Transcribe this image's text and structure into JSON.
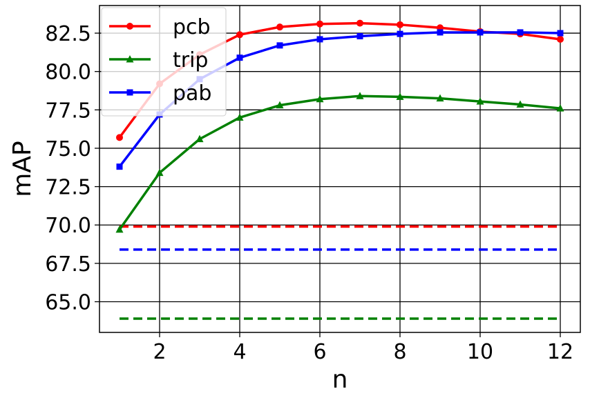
{
  "chart_data": {
    "type": "line",
    "title": "",
    "xlabel": "n",
    "ylabel": "mAP",
    "xlim": [
      0.5,
      12.5
    ],
    "ylim": [
      63.0,
      84.3
    ],
    "xticks": [
      2,
      4,
      6,
      8,
      10,
      12
    ],
    "xtick_labels": [
      "2",
      "4",
      "6",
      "8",
      "10",
      "12"
    ],
    "yticks": [
      65.0,
      67.5,
      70.0,
      72.5,
      75.0,
      77.5,
      80.0,
      82.5
    ],
    "ytick_labels": [
      "65.0",
      "67.5",
      "70.0",
      "72.5",
      "75.0",
      "77.5",
      "80.0",
      "82.5"
    ],
    "grid": true,
    "legend_position": "top-left",
    "x": [
      1,
      2,
      3,
      4,
      5,
      6,
      7,
      8,
      9,
      10,
      11,
      12
    ],
    "series": [
      {
        "name": "pcb",
        "color": "#ff0000",
        "marker": "circle",
        "values": [
          75.7,
          79.2,
          81.1,
          82.4,
          82.9,
          83.1,
          83.15,
          83.05,
          82.85,
          82.6,
          82.45,
          82.1
        ]
      },
      {
        "name": "trip",
        "color": "#008000",
        "marker": "triangle",
        "values": [
          69.7,
          73.4,
          75.6,
          77.0,
          77.8,
          78.2,
          78.4,
          78.35,
          78.25,
          78.05,
          77.85,
          77.6
        ]
      },
      {
        "name": "pab",
        "color": "#0000ff",
        "marker": "square",
        "values": [
          73.8,
          77.2,
          79.5,
          80.9,
          81.7,
          82.1,
          82.3,
          82.45,
          82.55,
          82.55,
          82.55,
          82.5
        ]
      }
    ],
    "baselines": [
      {
        "series": "pcb",
        "color": "#ff0000",
        "value": 69.9,
        "x_range": [
          1,
          12
        ]
      },
      {
        "series": "pab",
        "color": "#0000ff",
        "value": 68.4,
        "x_range": [
          1,
          12
        ]
      },
      {
        "series": "trip",
        "color": "#008000",
        "value": 63.9,
        "x_range": [
          1,
          12
        ]
      }
    ]
  }
}
